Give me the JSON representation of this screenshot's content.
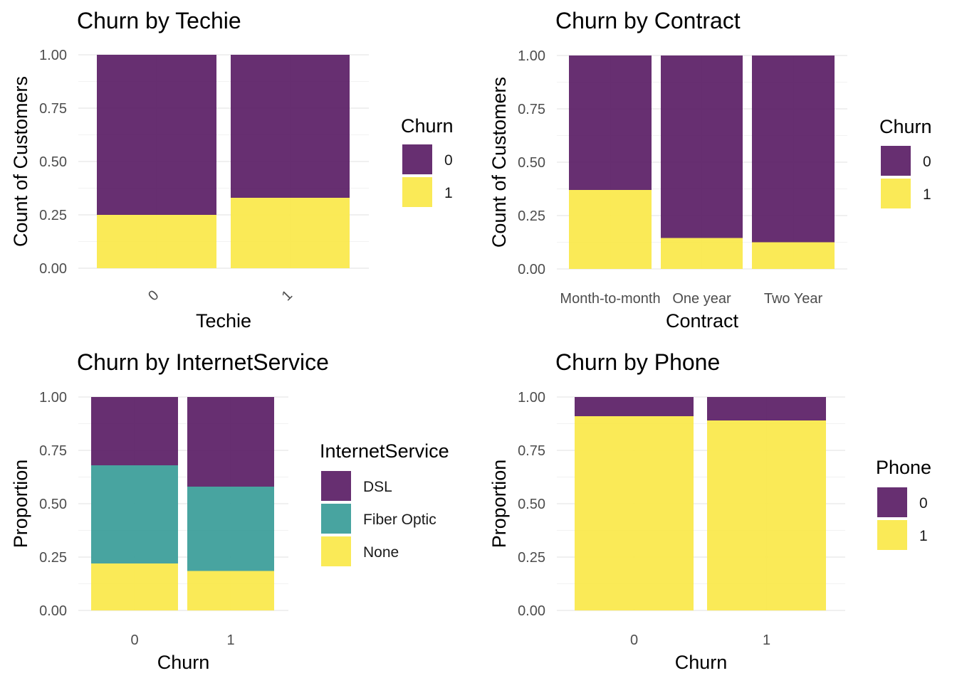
{
  "colors": {
    "purple": "#5b1f66",
    "teal": "#3a9d99",
    "yellow": "#fae84a"
  },
  "chart_data": [
    {
      "type": "bar",
      "stacked": "fill",
      "title": "Churn by Techie",
      "xlabel": "Techie",
      "ylabel": "Count of Customers",
      "ylim": [
        0,
        1
      ],
      "yticks": [
        "0.00",
        "0.25",
        "0.50",
        "0.75",
        "1.00"
      ],
      "categories": [
        "0",
        "1"
      ],
      "x_tick_rotation": "rotated",
      "legend": {
        "title": "Churn",
        "position": "right"
      },
      "series": [
        {
          "name": "0",
          "color": "#5b1f66",
          "values": [
            0.75,
            0.67
          ]
        },
        {
          "name": "1",
          "color": "#fae84a",
          "values": [
            0.25,
            0.33
          ]
        }
      ],
      "grid": true
    },
    {
      "type": "bar",
      "stacked": "fill",
      "title": "Churn by Contract",
      "xlabel": "Contract",
      "ylabel": "Count of Customers",
      "ylim": [
        0,
        1
      ],
      "yticks": [
        "0.00",
        "0.25",
        "0.50",
        "0.75",
        "1.00"
      ],
      "categories": [
        "Month-to-month",
        "One year",
        "Two Year"
      ],
      "legend": {
        "title": "Churn",
        "position": "right"
      },
      "series": [
        {
          "name": "0",
          "color": "#5b1f66",
          "values": [
            0.63,
            0.855,
            0.875
          ]
        },
        {
          "name": "1",
          "color": "#fae84a",
          "values": [
            0.37,
            0.145,
            0.125
          ]
        }
      ],
      "grid": true
    },
    {
      "type": "bar",
      "stacked": "fill",
      "title": "Churn by InternetService",
      "xlabel": "Churn",
      "ylabel": "Proportion",
      "ylim": [
        0,
        1
      ],
      "yticks": [
        "0.00",
        "0.25",
        "0.50",
        "0.75",
        "1.00"
      ],
      "categories": [
        "0",
        "1"
      ],
      "legend": {
        "title": "InternetService",
        "position": "right"
      },
      "series": [
        {
          "name": "DSL",
          "color": "#5b1f66",
          "values": [
            0.32,
            0.42
          ]
        },
        {
          "name": "Fiber Optic",
          "color": "#3a9d99",
          "values": [
            0.46,
            0.395
          ]
        },
        {
          "name": "None",
          "color": "#fae84a",
          "values": [
            0.22,
            0.185
          ]
        }
      ],
      "grid": true
    },
    {
      "type": "bar",
      "stacked": "fill",
      "title": "Churn by Phone",
      "xlabel": "Churn",
      "ylabel": "Proportion",
      "ylim": [
        0,
        1
      ],
      "yticks": [
        "0.00",
        "0.25",
        "0.50",
        "0.75",
        "1.00"
      ],
      "categories": [
        "0",
        "1"
      ],
      "legend": {
        "title": "Phone",
        "position": "right"
      },
      "series": [
        {
          "name": "0",
          "color": "#5b1f66",
          "values": [
            0.09,
            0.11
          ]
        },
        {
          "name": "1",
          "color": "#fae84a",
          "values": [
            0.91,
            0.89
          ]
        }
      ],
      "grid": true
    }
  ]
}
